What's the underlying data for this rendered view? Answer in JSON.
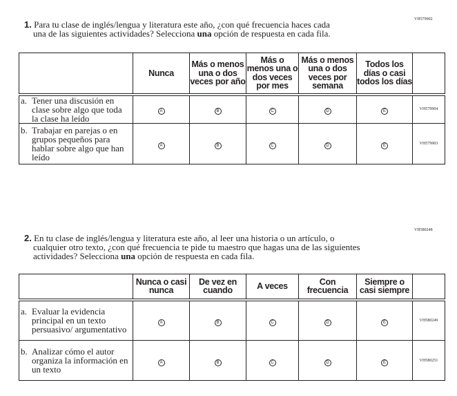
{
  "questions": [
    {
      "id": "VH579902",
      "number": "1.",
      "text_before": "Para tu clase de inglés/lengua y literatura este año, ¿con qué frecuencia haces cada",
      "text_line2_before": "una de las siguientes actividades? Selecciona ",
      "text_bold": "una",
      "text_after": " opción de respuesta en cada fila.",
      "columns": [
        "Nunca",
        "Más o menos una o dos veces por año",
        "Más o menos una o dos veces por mes",
        "Más o menos una o dos veces por semana",
        "Todos los días o casi todos los días"
      ],
      "rows": [
        {
          "label": "a.",
          "text": "Tener una discusión en clase sobre algo que toda la clase ha leído",
          "code": "VH579904"
        },
        {
          "label": "b.",
          "text": "Trabajar en parejas o en grupos pequeños para hablar sobre algo que han leído",
          "code": "VH579903"
        }
      ]
    },
    {
      "id": "VH580248",
      "number": "2.",
      "text_before": "En tu clase de inglés/lengua y literatura este año, al leer una historia o un artículo, o",
      "text_line2_before": "cualquier otro texto, ¿con qué frecuencia te pide tu maestro que hagas una de las siguientes actividades? Selecciona ",
      "text_bold": "una",
      "text_after": " opción de respuesta en cada fila.",
      "columns": [
        "Nunca o casi nunca",
        "De vez en cuando",
        "A veces",
        "Con frecuencia",
        "Siempre o casi siempre"
      ],
      "rows": [
        {
          "label": "a.",
          "text": "Evaluar la evidencia principal en un texto persuasivo/ argumentativo",
          "code": "VH580249"
        },
        {
          "label": "b.",
          "text": "Analizar cómo el autor organiza la información en un texto",
          "code": "VH580251"
        }
      ]
    }
  ],
  "bubbles": [
    "A",
    "B",
    "C",
    "D",
    "E"
  ]
}
